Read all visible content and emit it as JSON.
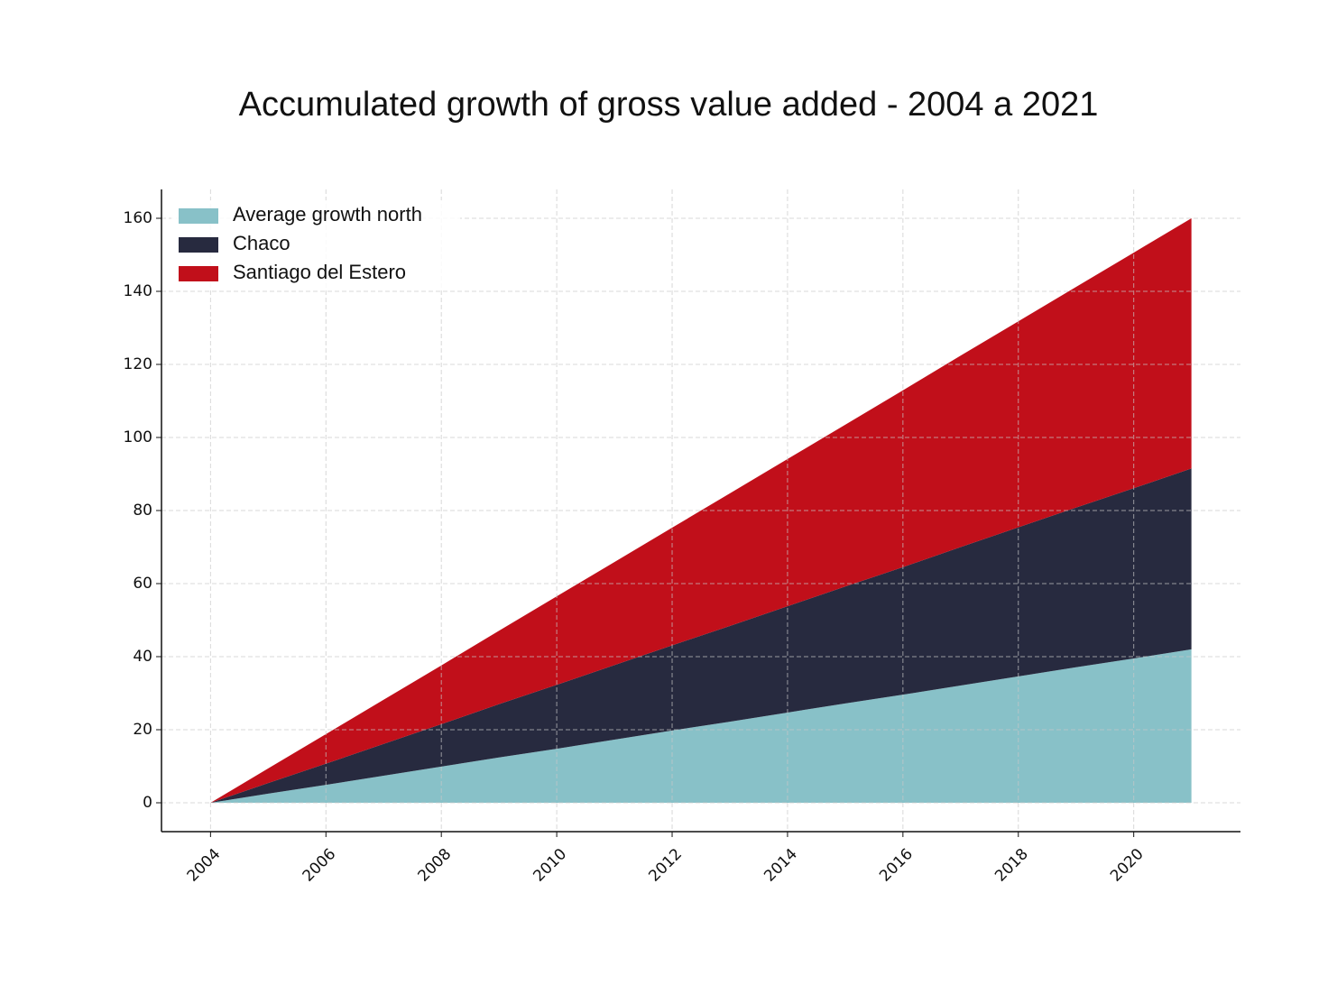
{
  "chart_data": {
    "type": "stacked-area",
    "title": "Accumulated growth of gross value added - 2004 a 2021",
    "x": [
      2004,
      2005,
      2006,
      2007,
      2008,
      2009,
      2010,
      2011,
      2012,
      2013,
      2014,
      2015,
      2016,
      2017,
      2018,
      2019,
      2020,
      2021
    ],
    "series": [
      {
        "name": "Average growth north",
        "color": "#88c1c8",
        "values": [
          0,
          2.5,
          4.9,
          7.4,
          9.9,
          12.4,
          14.8,
          17.3,
          19.8,
          22.2,
          24.7,
          27.2,
          29.6,
          32.1,
          34.6,
          37.1,
          39.5,
          42
        ]
      },
      {
        "name": "Chaco",
        "color": "#272a3f",
        "values": [
          0,
          2.9,
          5.8,
          8.7,
          11.6,
          14.6,
          17.5,
          20.4,
          23.3,
          26.2,
          29.1,
          32,
          34.9,
          37.9,
          40.8,
          43.7,
          46.6,
          49.5
        ]
      },
      {
        "name": "Santiago del Estero",
        "color": "#c10f1a",
        "values": [
          0,
          4,
          8.1,
          12.1,
          16.1,
          20.1,
          24.2,
          28.2,
          32.2,
          36.3,
          40.3,
          44.3,
          48.4,
          52.4,
          56.4,
          60.4,
          64.5,
          68.5
        ]
      }
    ],
    "xlim": [
      2003.15,
      2021.85
    ],
    "xticks": [
      2004,
      2006,
      2008,
      2010,
      2012,
      2014,
      2016,
      2018,
      2020
    ],
    "ylim": [
      -7.9,
      167.9
    ],
    "yticks": [
      0,
      20,
      40,
      60,
      80,
      100,
      120,
      140,
      160
    ],
    "grid": true,
    "legend": "upper-left"
  }
}
